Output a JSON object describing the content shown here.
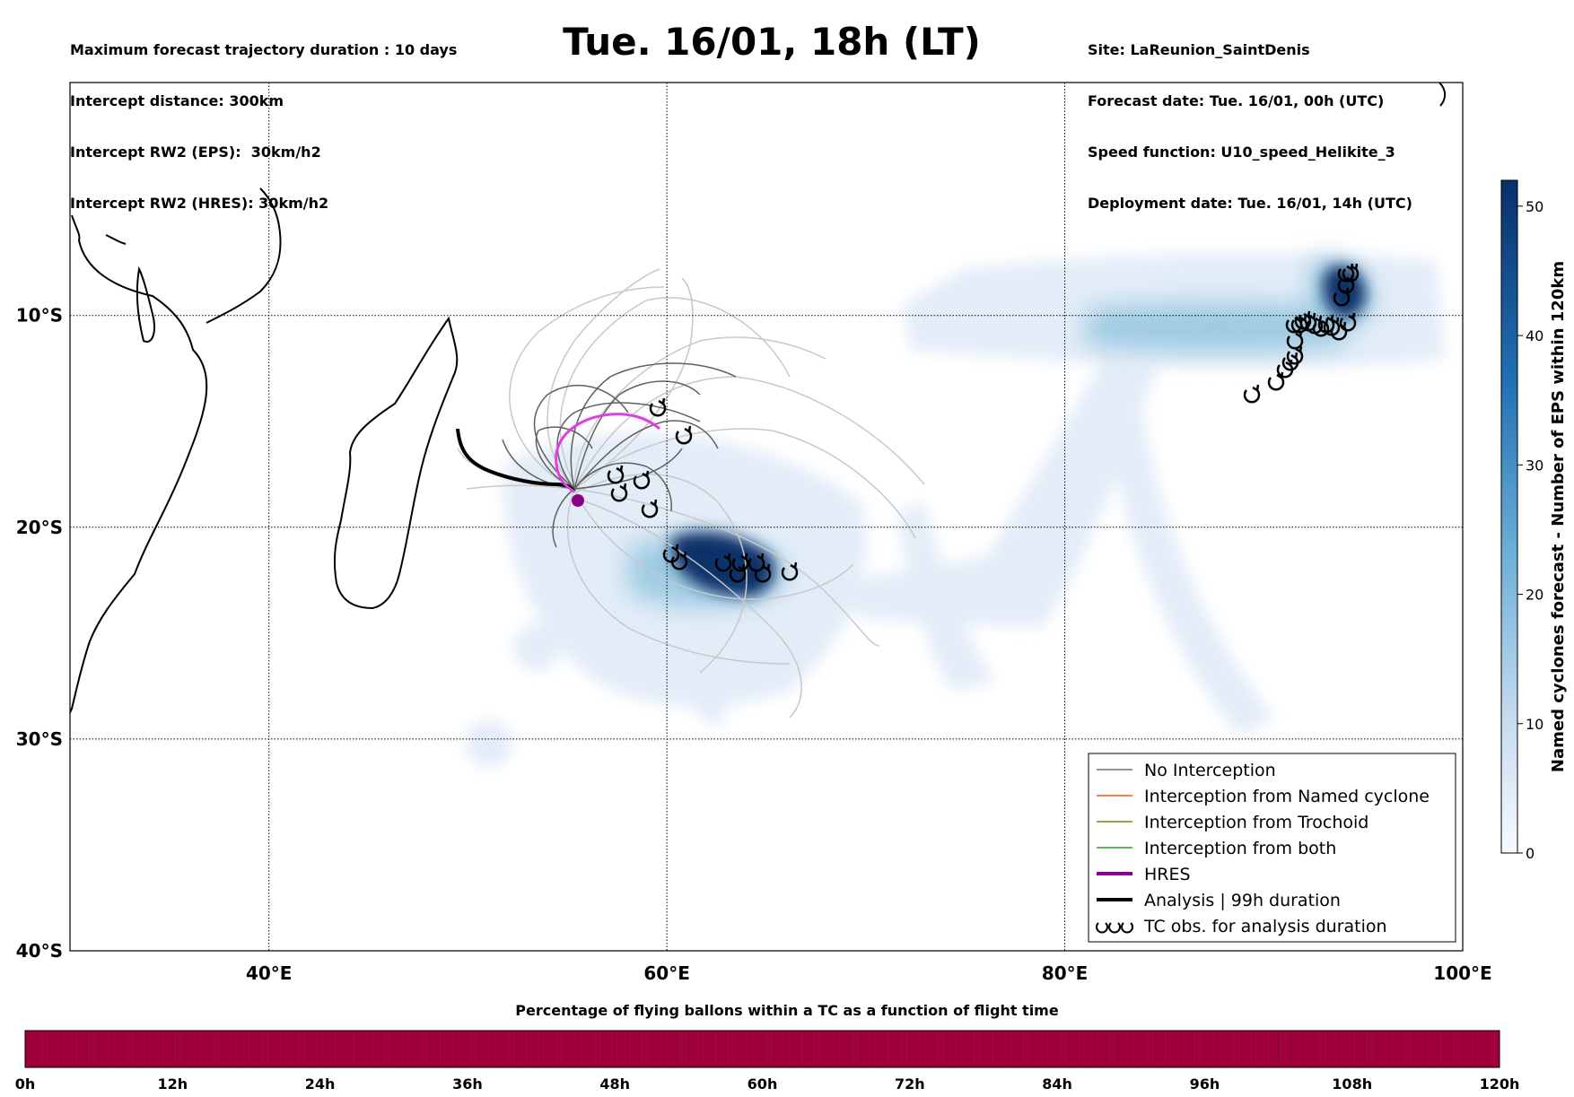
{
  "header": {
    "left_lines": [
      "Maximum forecast trajectory duration : 10 days",
      "Intercept distance: 300km",
      "Intercept RW2 (EPS):  30km/h2",
      "Intercept RW2 (HRES): 30km/h2"
    ],
    "right_lines": [
      "Site: LaReunion_SaintDenis",
      "Forecast date: Tue. 16/01, 00h (UTC)",
      "Speed function: U10_speed_Helikite_3",
      "Deployment date: Tue. 16/01, 14h (UTC)"
    ],
    "title": "Tue. 16/01, 18h (LT)"
  },
  "map": {
    "lon_range": [
      30,
      100
    ],
    "lat_range": [
      -40,
      1
    ],
    "lat_labels": [
      "10°S",
      "20°S",
      "30°S",
      "40°S"
    ],
    "lon_labels": [
      "40°E",
      "60°E",
      "80°E",
      "100°E"
    ],
    "colors": {
      "no_interception": "#707070",
      "named_cyclone": "#e85a1a",
      "trochoid": "#808000",
      "both": "#2a9a2a",
      "hres": "#8b008b",
      "hres_track": "#e040e0",
      "analysis": "#000000",
      "density_low": "#dce9f6",
      "density_high": "#08306b"
    }
  },
  "legend": {
    "items": [
      {
        "label": "No Interception",
        "color": "#707070",
        "width": 1.5
      },
      {
        "label": "Interception from Named cyclone",
        "color": "#e85a1a",
        "width": 1.5
      },
      {
        "label": "Interception from Trochoid",
        "color": "#808000",
        "width": 1.5
      },
      {
        "label": "Interception from both",
        "color": "#2a9a2a",
        "width": 1.5
      },
      {
        "label": "HRES",
        "color": "#8b008b",
        "width": 4
      },
      {
        "label": "Analysis | 99h duration",
        "color": "#000000",
        "width": 4
      },
      {
        "label": "TC obs. for analysis duration",
        "color": "#000000",
        "width": 0
      }
    ]
  },
  "colorbar": {
    "label": "Named cyclones forecast - Number of EPS within 120km",
    "ticks": [
      "0",
      "10",
      "20",
      "30",
      "40",
      "50"
    ],
    "min": 0,
    "max": 52
  },
  "time_bar": {
    "title": "Percentage of flying ballons within a TC as a function of flight time",
    "ticks": [
      "0h",
      "12h",
      "24h",
      "36h",
      "48h",
      "60h",
      "72h",
      "84h",
      "96h",
      "108h",
      "120h"
    ],
    "fill_color": "#a0003c",
    "fill_fraction": 1.0
  }
}
